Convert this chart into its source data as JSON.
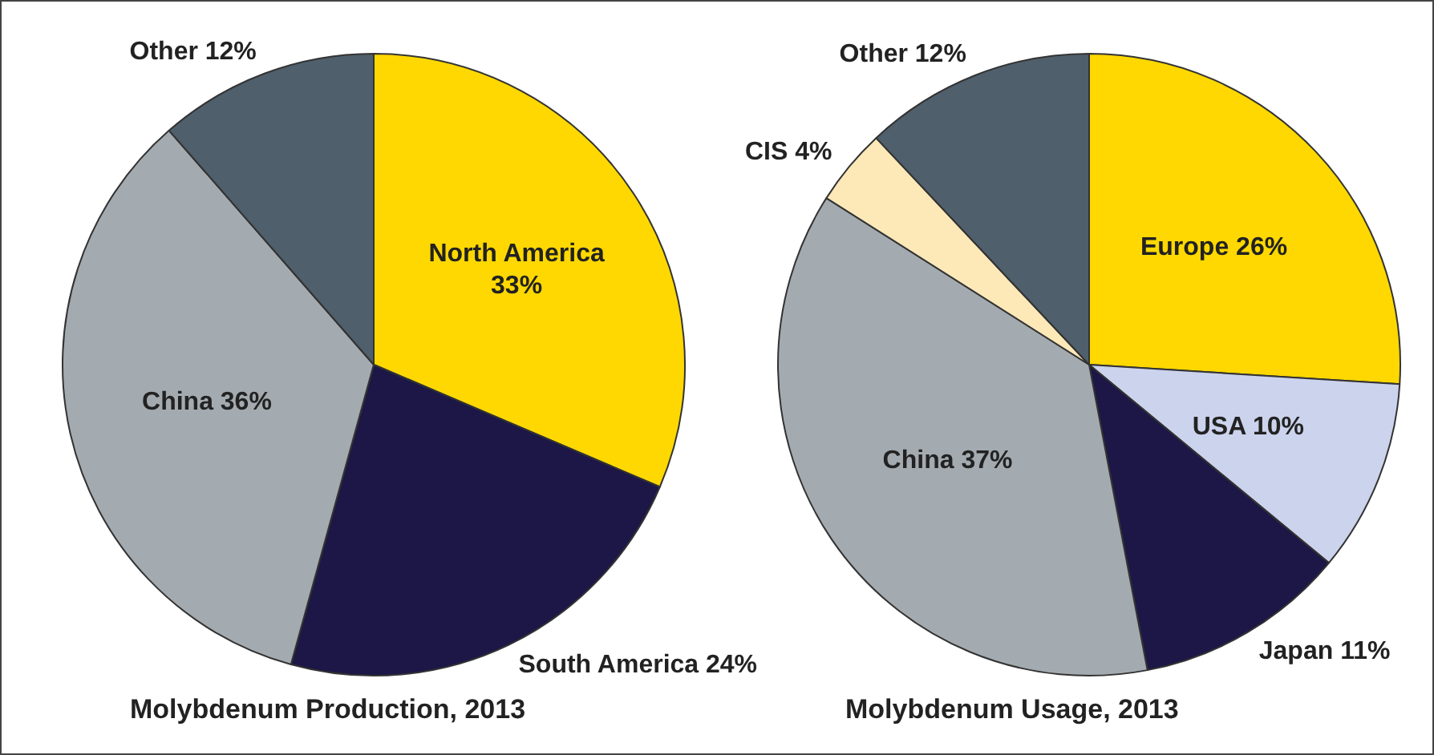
{
  "chart_data": [
    {
      "type": "pie",
      "title": "Molybdenum Production, 2013",
      "categories": [
        "North America",
        "South America",
        "China",
        "Other"
      ],
      "values": [
        33,
        24,
        36,
        12
      ],
      "colors": [
        "#fed800",
        "#1c1747",
        "#a4abb0",
        "#4f5f6b"
      ],
      "value_labels": [
        "33%",
        "24%",
        "36%",
        "12%"
      ]
    },
    {
      "type": "pie",
      "title": "Molybdenum Usage, 2013",
      "categories": [
        "Europe",
        "USA",
        "Japan",
        "China",
        "CIS",
        "Other"
      ],
      "values": [
        26,
        10,
        11,
        37,
        4,
        12
      ],
      "colors": [
        "#fed800",
        "#ccd3ec",
        "#1c1747",
        "#a4abb0",
        "#fde9b8",
        "#4f5f6b"
      ],
      "value_labels": [
        "26%",
        "10%",
        "11%",
        "37%",
        "4%",
        "12%"
      ]
    }
  ]
}
